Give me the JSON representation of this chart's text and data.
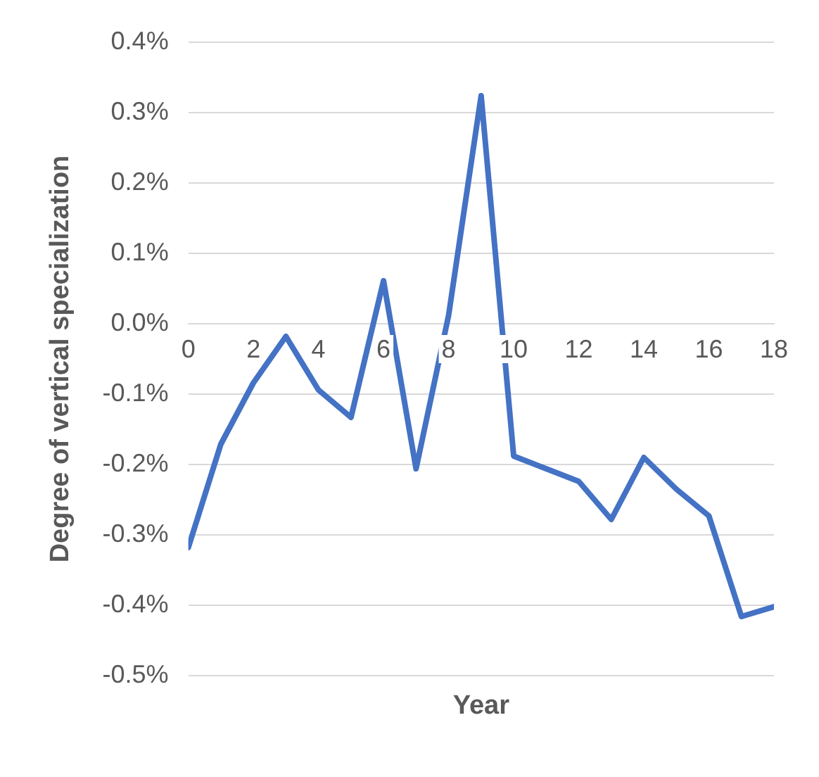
{
  "chart_data": {
    "type": "line",
    "xlabel": "Year",
    "ylabel": "Degree of vertical specialization",
    "x": [
      0,
      1,
      2,
      3,
      4,
      5,
      6,
      7,
      8,
      9,
      10,
      11,
      12,
      13,
      14,
      15,
      16,
      17,
      18
    ],
    "series": [
      {
        "color": "#4472c4",
        "values": [
          -0.318,
          -0.171,
          -0.084,
          -0.018,
          -0.094,
          -0.133,
          0.061,
          -0.206,
          0.012,
          0.324,
          -0.188,
          -0.206,
          -0.224,
          -0.278,
          -0.19,
          -0.235,
          -0.273,
          -0.416,
          -0.402
        ]
      }
    ],
    "xlim": [
      0,
      18
    ],
    "xticks": [
      0,
      2,
      4,
      6,
      8,
      10,
      12,
      14,
      16,
      18
    ],
    "ylim": [
      -0.5,
      0.4
    ],
    "yticks": [
      {
        "value": -0.5,
        "label": "-0.5%"
      },
      {
        "value": -0.4,
        "label": "-0.4%"
      },
      {
        "value": -0.3,
        "label": "-0.3%"
      },
      {
        "value": -0.2,
        "label": "-0.2%"
      },
      {
        "value": -0.1,
        "label": "-0.1%"
      },
      {
        "value": 0,
        "label": "0.0%"
      },
      {
        "value": 0.1,
        "label": "0.1%"
      },
      {
        "value": 0.2,
        "label": "0.2%"
      },
      {
        "value": 0.3,
        "label": "0.3%"
      },
      {
        "value": 0.4,
        "label": "0.4%"
      }
    ],
    "grid": "y",
    "legend": false,
    "marker": "none",
    "line_style": "solid"
  }
}
